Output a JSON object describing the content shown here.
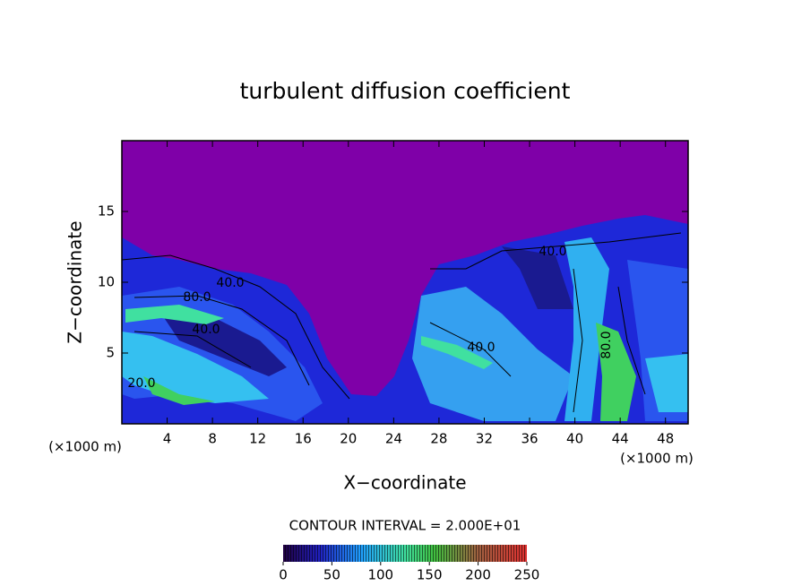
{
  "chart_data": {
    "type": "contour",
    "title": "turbulent diffusion coefficient",
    "xlabel": "X−coordinate",
    "ylabel": "Z−coordinate",
    "x_unit_label": "(×1000 m)",
    "y_unit_label": "(×1000 m)",
    "contour_interval_label": "CONTOUR INTERVAL = 2.000E+01",
    "xlim": [
      0,
      50
    ],
    "xticks": [
      4,
      8,
      12,
      16,
      20,
      24,
      28,
      32,
      36,
      40,
      44,
      48
    ],
    "ylim": [
      0,
      20
    ],
    "yticks": [
      5,
      10,
      15
    ],
    "contour_labels": [
      "40.0",
      "80.0",
      "40.0",
      "40.0",
      "40.0",
      "80.0",
      "20.0"
    ],
    "colorbar_lim": [
      0,
      250
    ],
    "colorbar_ticks": [
      0,
      50,
      100,
      150,
      200,
      250
    ]
  }
}
